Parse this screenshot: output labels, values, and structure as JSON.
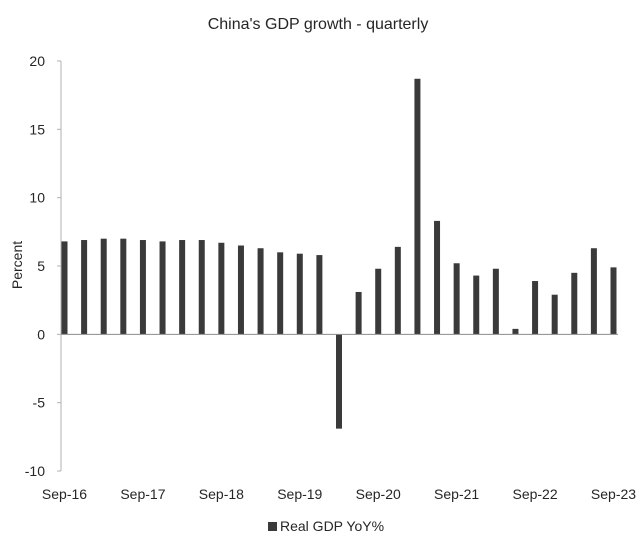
{
  "chart_data": {
    "type": "bar",
    "title": "China's GDP growth - quarterly",
    "ylabel": "Percent",
    "xlabel": "",
    "ylim": [
      -10,
      20
    ],
    "yticks": [
      -10,
      -5,
      0,
      5,
      10,
      15,
      20
    ],
    "x_tick_labels": [
      "Sep-16",
      "Sep-17",
      "Sep-18",
      "Sep-19",
      "Sep-20",
      "Sep-21",
      "Sep-22",
      "Sep-23"
    ],
    "categories": [
      "Sep-16",
      "Dec-16",
      "Mar-17",
      "Jun-17",
      "Sep-17",
      "Dec-17",
      "Mar-18",
      "Jun-18",
      "Sep-18",
      "Dec-18",
      "Mar-19",
      "Jun-19",
      "Sep-19",
      "Dec-19",
      "Mar-20",
      "Jun-20",
      "Sep-20",
      "Dec-20",
      "Mar-21",
      "Jun-21",
      "Sep-21",
      "Dec-21",
      "Mar-22",
      "Jun-22",
      "Sep-22",
      "Dec-22",
      "Mar-23",
      "Jun-23",
      "Sep-23"
    ],
    "series": [
      {
        "name": "Real GDP YoY%",
        "color": "#3a3a3a",
        "values": [
          6.8,
          6.9,
          7.0,
          7.0,
          6.9,
          6.8,
          6.9,
          6.9,
          6.7,
          6.5,
          6.3,
          6.0,
          5.9,
          5.8,
          -6.9,
          3.1,
          4.8,
          6.4,
          18.7,
          8.3,
          5.2,
          4.3,
          4.8,
          0.4,
          3.9,
          2.9,
          4.5,
          6.3,
          4.9
        ]
      }
    ],
    "grid": false,
    "legend": "bottom-center"
  }
}
